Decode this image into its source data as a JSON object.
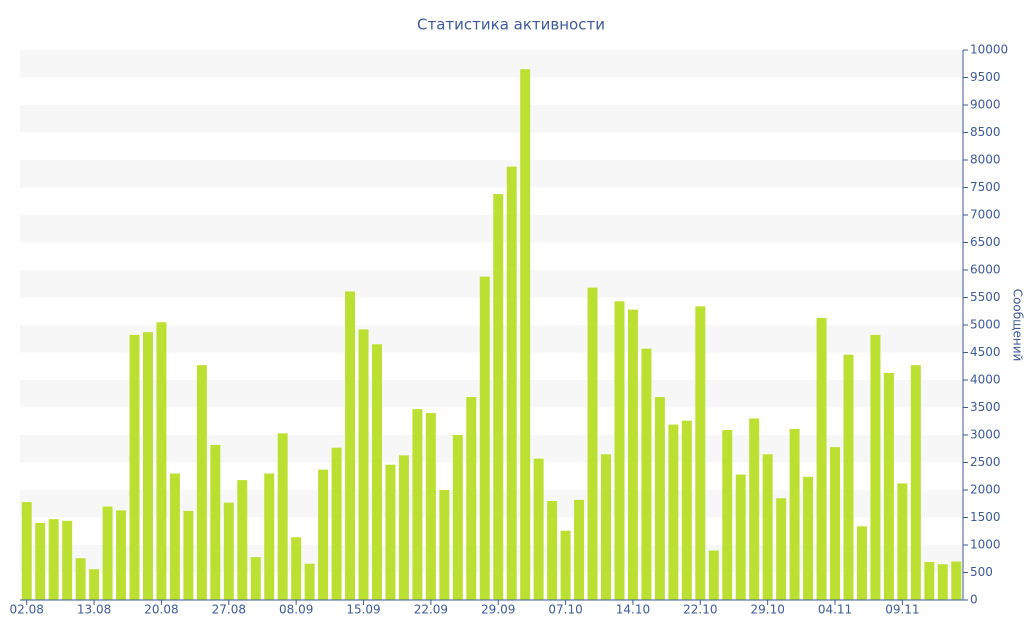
{
  "chart_data": {
    "type": "bar",
    "title": "Статистика активности",
    "y_label": "Сообщений",
    "categories": [
      "02.08",
      null,
      null,
      null,
      null,
      "13.08",
      null,
      null,
      null,
      null,
      "20.08",
      null,
      null,
      null,
      null,
      "27.08",
      null,
      null,
      null,
      null,
      "08.09",
      null,
      null,
      null,
      null,
      "15.09",
      null,
      null,
      null,
      null,
      "22.09",
      null,
      null,
      null,
      null,
      "29.09",
      null,
      null,
      null,
      null,
      "07.10",
      null,
      null,
      null,
      null,
      "14.10",
      null,
      null,
      null,
      null,
      "22.10",
      null,
      null,
      null,
      null,
      "29.10",
      null,
      null,
      null,
      null,
      "04.11",
      null,
      null,
      null,
      null,
      "09.11",
      null,
      null,
      null,
      null
    ],
    "values": [
      1780,
      1400,
      1470,
      1440,
      760,
      560,
      1700,
      1630,
      4820,
      4870,
      5050,
      2300,
      1620,
      4270,
      2820,
      1770,
      2180,
      780,
      2300,
      3030,
      1140,
      660,
      2370,
      2770,
      5610,
      4920,
      4650,
      2460,
      2630,
      3470,
      3400,
      2000,
      3000,
      3690,
      5880,
      7380,
      7880,
      9650,
      2570,
      1800,
      1260,
      1820,
      5680,
      2650,
      5430,
      5280,
      4570,
      3690,
      3190,
      3260,
      5340,
      900,
      3090,
      2280,
      3300,
      2650,
      1850,
      3110,
      2240,
      5130,
      2780,
      4460,
      1340,
      4820,
      4130,
      2120,
      4270,
      690,
      650,
      700
    ],
    "color": "#bce032",
    "ylim": [
      0,
      10000
    ],
    "yticks": [
      0,
      500,
      1000,
      1500,
      2000,
      2500,
      3000,
      3500,
      4000,
      4500,
      5000,
      5500,
      6000,
      6500,
      7000,
      7500,
      8000,
      8500,
      9000,
      9500,
      10000
    ],
    "y_axis_side": "right",
    "grid": "bands"
  }
}
